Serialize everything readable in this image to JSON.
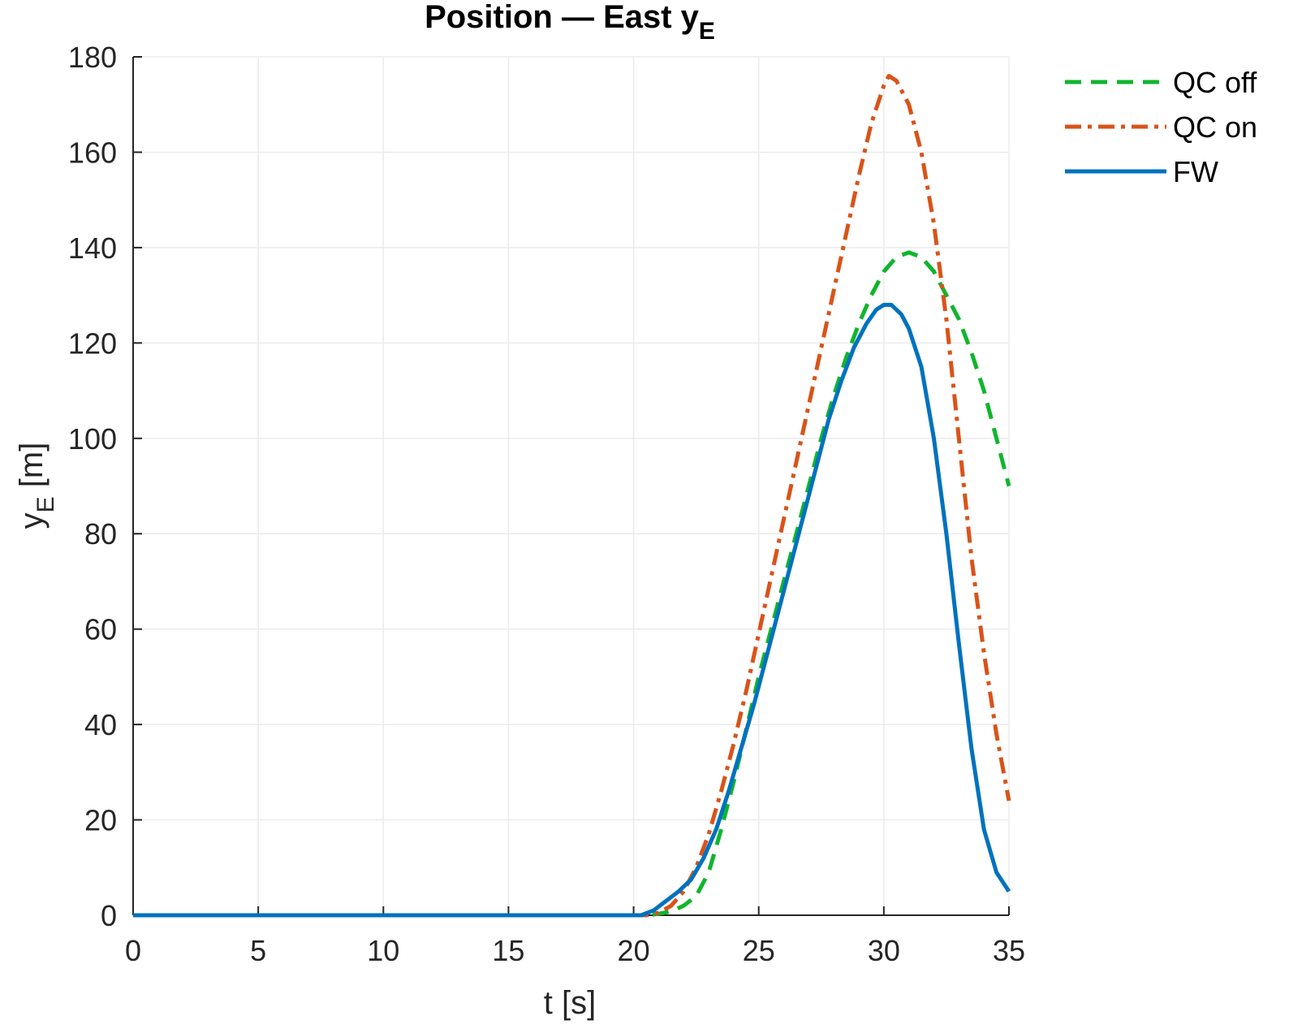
{
  "chart_data": {
    "type": "line",
    "title": "Position — East y",
    "title_subscript": "E",
    "xlabel": "t [s]",
    "ylabel": "y",
    "ylabel_subscript": "E",
    "ylabel_suffix": " [m]",
    "xlim": [
      0,
      35
    ],
    "ylim": [
      0,
      180
    ],
    "xticks": [
      0,
      5,
      10,
      15,
      20,
      25,
      30,
      35
    ],
    "yticks": [
      0,
      20,
      40,
      60,
      80,
      100,
      120,
      140,
      160,
      180
    ],
    "grid": true,
    "legend_position": "top-right outside",
    "series": [
      {
        "name": "QC off",
        "color": "#0fb52d",
        "dash": "dashed",
        "points": [
          [
            0,
            0
          ],
          [
            20.6,
            0
          ],
          [
            21,
            0.3
          ],
          [
            21.5,
            0.8
          ],
          [
            22,
            2
          ],
          [
            22.5,
            4
          ],
          [
            23,
            9
          ],
          [
            23.5,
            18
          ],
          [
            24,
            28
          ],
          [
            24.5,
            39
          ],
          [
            25,
            50
          ],
          [
            25.5,
            60
          ],
          [
            26,
            70
          ],
          [
            26.5,
            80
          ],
          [
            27,
            90
          ],
          [
            27.5,
            100
          ],
          [
            28,
            109
          ],
          [
            28.5,
            117
          ],
          [
            29,
            124
          ],
          [
            29.5,
            130
          ],
          [
            30,
            135
          ],
          [
            30.5,
            138
          ],
          [
            31,
            139
          ],
          [
            31.5,
            138
          ],
          [
            32,
            135
          ],
          [
            32.5,
            130
          ],
          [
            33,
            125
          ],
          [
            33.5,
            118
          ],
          [
            34,
            110
          ],
          [
            34.5,
            100
          ],
          [
            35,
            90
          ]
        ]
      },
      {
        "name": "QC on",
        "color": "#d95319",
        "dash": "dashdot",
        "points": [
          [
            0,
            0
          ],
          [
            20.5,
            0
          ],
          [
            21,
            0.5
          ],
          [
            21.5,
            2
          ],
          [
            22,
            5
          ],
          [
            22.5,
            10
          ],
          [
            23,
            17
          ],
          [
            23.5,
            26
          ],
          [
            24,
            36
          ],
          [
            24.5,
            47
          ],
          [
            25,
            59
          ],
          [
            25.5,
            71
          ],
          [
            26,
            83
          ],
          [
            26.5,
            95
          ],
          [
            27,
            107
          ],
          [
            27.5,
            119
          ],
          [
            28,
            131
          ],
          [
            28.5,
            143
          ],
          [
            29,
            155
          ],
          [
            29.5,
            166
          ],
          [
            30,
            174
          ],
          [
            30.2,
            176
          ],
          [
            30.5,
            175
          ],
          [
            31,
            170
          ],
          [
            31.5,
            160
          ],
          [
            32,
            145
          ],
          [
            32.5,
            125
          ],
          [
            33,
            100
          ],
          [
            33.5,
            75
          ],
          [
            34,
            55
          ],
          [
            34.5,
            38
          ],
          [
            35,
            24
          ]
        ]
      },
      {
        "name": "FW",
        "color": "#0072bd",
        "dash": "solid",
        "points": [
          [
            0,
            0
          ],
          [
            20.3,
            0
          ],
          [
            20.8,
            1
          ],
          [
            21.3,
            3
          ],
          [
            21.8,
            5
          ],
          [
            22.3,
            7.5
          ],
          [
            22.8,
            12
          ],
          [
            23.3,
            18
          ],
          [
            23.8,
            26
          ],
          [
            24.3,
            35
          ],
          [
            24.8,
            44
          ],
          [
            25.3,
            54
          ],
          [
            25.8,
            64
          ],
          [
            26.3,
            74
          ],
          [
            26.8,
            84
          ],
          [
            27.3,
            94
          ],
          [
            27.8,
            104
          ],
          [
            28.3,
            112
          ],
          [
            28.8,
            119
          ],
          [
            29.3,
            124
          ],
          [
            29.7,
            127
          ],
          [
            30,
            128
          ],
          [
            30.3,
            128
          ],
          [
            30.7,
            126
          ],
          [
            31,
            123
          ],
          [
            31.5,
            115
          ],
          [
            32,
            100
          ],
          [
            32.5,
            80
          ],
          [
            33,
            57
          ],
          [
            33.5,
            35
          ],
          [
            34,
            18
          ],
          [
            34.5,
            9
          ],
          [
            35,
            5
          ]
        ]
      }
    ]
  }
}
